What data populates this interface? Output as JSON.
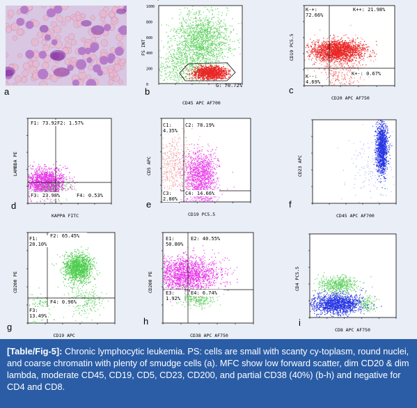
{
  "panels": {
    "a": {
      "letter": "a"
    },
    "b": {
      "letter": "b",
      "xlabel": "CD45 APC AF700",
      "ylabel": "FS INT",
      "yticks": [
        "1000",
        "800",
        "600",
        "400",
        "200",
        "0"
      ],
      "gate": "G: 70.72%"
    },
    "c": {
      "letter": "c",
      "xlabel": "CD20 APC AF750",
      "ylabel": "CD19 PC5.5",
      "q1": "K-+:\n72.66%",
      "q2": "K++: 21.98%",
      "q3": "K--:\n4.69%",
      "q4": "K+-: 0.67%"
    },
    "d": {
      "letter": "d",
      "xlabel": "KAPPA FITC",
      "ylabel": "LAMBDA PE",
      "q1": "F1: 73.92%",
      "q2": "F2: 1.57%",
      "q3": "F3: 23.98%",
      "q4": "F4: 0.53%"
    },
    "e": {
      "letter": "e",
      "xlabel": "CD19 PC5.5",
      "ylabel": "CD5 APC",
      "q1": "C1:\n4.35%",
      "q2": "C2: 78.19%",
      "q3": "C3:\n2.80%",
      "q4": "C4: 14.66%"
    },
    "f": {
      "letter": "f",
      "xlabel": "CD45 APC AF700",
      "ylabel": "CD23 APC"
    },
    "g": {
      "letter": "g",
      "xlabel": "CD19 APC",
      "ylabel": "CD200 PE",
      "q1": "F1:\n20.10%",
      "q2": "F2: 65.45%",
      "q3": "F3:\n13.49%",
      "q4": "F4: 0.96%"
    },
    "h": {
      "letter": "h",
      "xlabel": "CD38 APC AF750",
      "ylabel": "CD200 PE",
      "q1": "E1:\n50.80%",
      "q2": "E2: 40.55%",
      "q3": "E3:\n1.92%",
      "q4": "E4: 6.74%"
    },
    "i": {
      "letter": "i",
      "xlabel": "CD8 APC AF750",
      "ylabel": "CD4 PC5.5"
    }
  },
  "caption": {
    "tag": "[Table/Fig-5]:",
    "text": " Chronic lymphocytic leukemia. PS: cells are small with scanty cy-toplasm, round nuclei, and coarse chromatin with plenty of smudge cells (a). MFC show low forward scatter, dim CD20 & dim lambda, moderate CD45, CD19, CD5, CD23, CD200, and partial CD38 (40%) (b-h) and negative for CD4 and CD8."
  },
  "colors": {
    "caption_bg": "#2b5da6",
    "panel_bg": "#eaeef6",
    "green": "#3cc83c",
    "red": "#e81010",
    "magenta": "#e61ee6",
    "blue": "#1020e0",
    "smear": "#b478c8"
  }
}
